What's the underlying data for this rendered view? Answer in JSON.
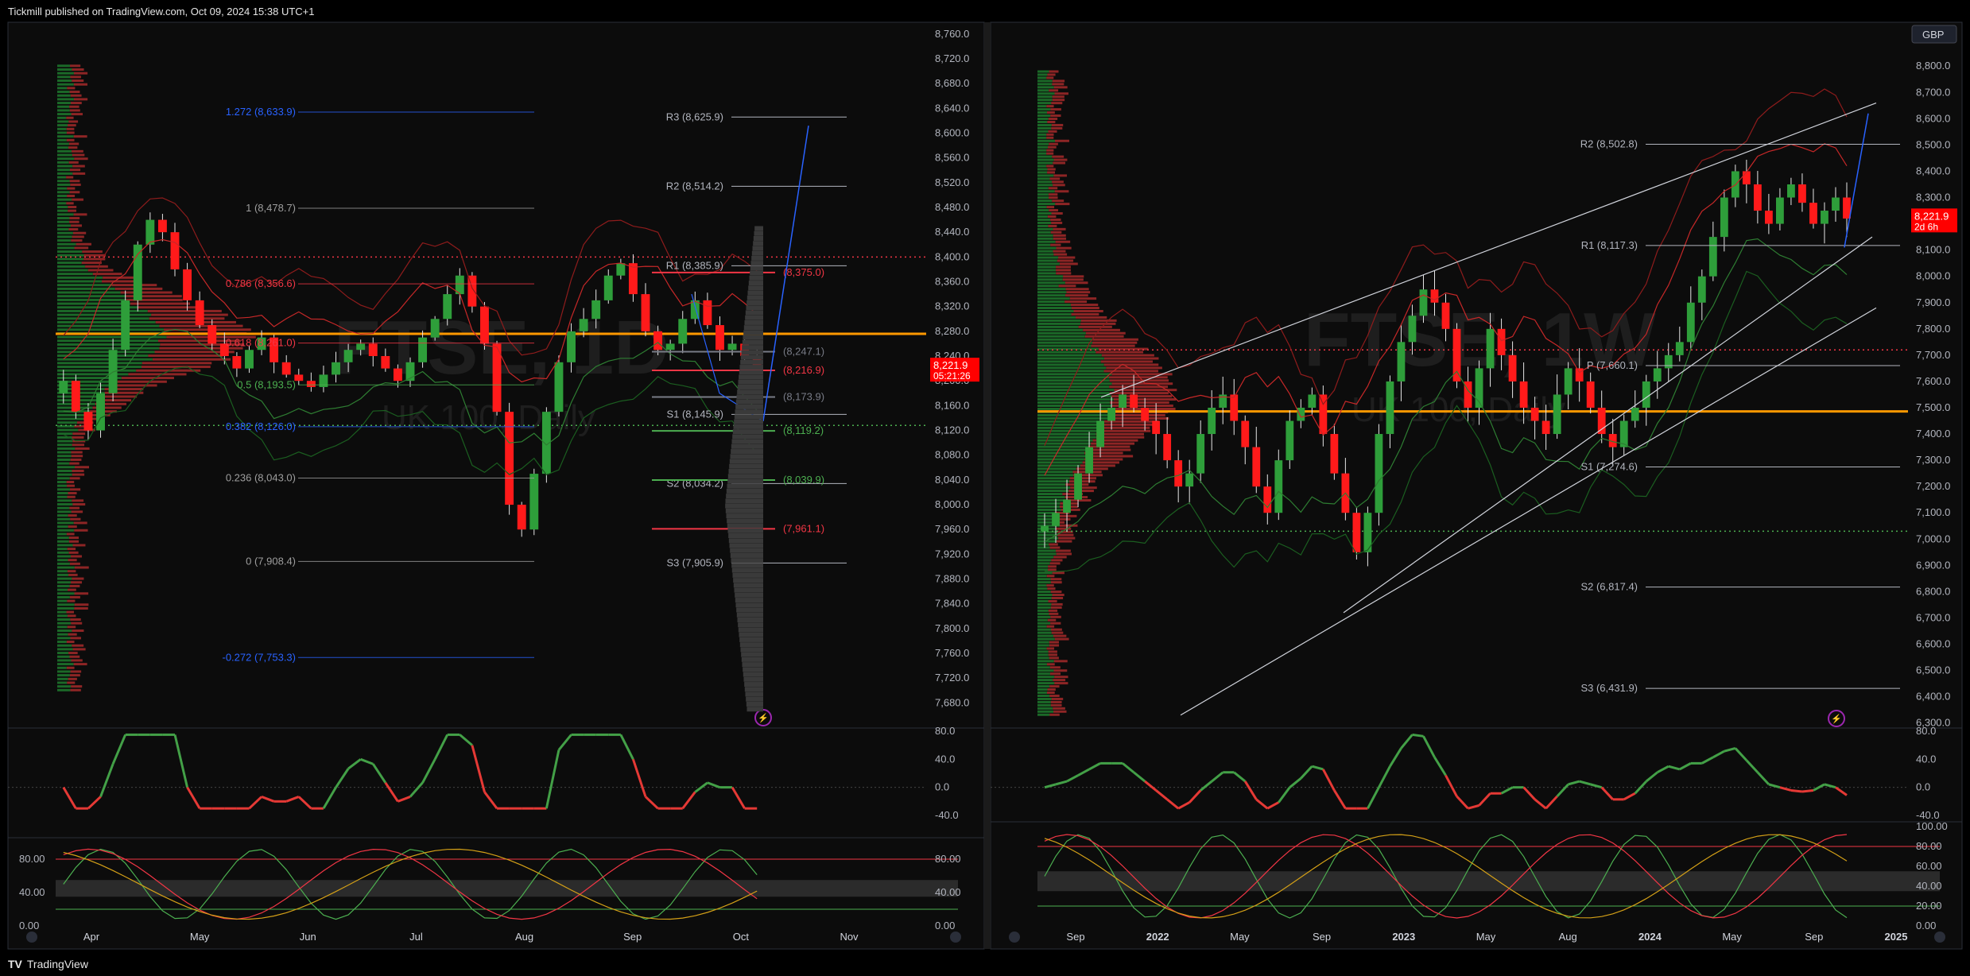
{
  "header": {
    "published": "Tickmill published on TradingView.com, Oct 09, 2024 15:38 UTC+1"
  },
  "footer": {
    "brand": "TradingView"
  },
  "currency_button": "GBP",
  "chart_data": [
    {
      "type": "candlestick",
      "watermark_symbol": "FTSE, 1D",
      "watermark_desc": "UK 100, Daily",
      "price_axis_ticks": [
        "8,760.0",
        "8,720.0",
        "8,680.0",
        "8,640.0",
        "8,600.0",
        "8,560.0",
        "8,520.0",
        "8,480.0",
        "8,440.0",
        "8,400.0",
        "8,360.0",
        "8,320.0",
        "8,280.0",
        "8,240.0",
        "8,200.0",
        "8,160.0",
        "8,120.0",
        "8,080.0",
        "8,040.0",
        "8,000.0",
        "7,960.0",
        "7,920.0",
        "7,880.0",
        "7,840.0",
        "7,800.0",
        "7,760.0",
        "7,720.0",
        "7,680.0"
      ],
      "ylim": [
        7660,
        8770
      ],
      "time_axis": [
        "Apr",
        "May",
        "Jun",
        "Jul",
        "Aug",
        "Sep",
        "Oct",
        "Nov"
      ],
      "last_price": "8,221.9",
      "countdown": "05:21:26",
      "fib_levels": [
        {
          "label": "1.272 (8,633.9)",
          "value": 8633.9,
          "color": "#2962ff"
        },
        {
          "label": "1 (8,478.7)",
          "value": 8478.7,
          "color": "#9e9e9e"
        },
        {
          "label": "0.786 (8,356.6)",
          "value": 8356.6,
          "color": "#f23645"
        },
        {
          "label": "0.618 (8,261.0)",
          "value": 8261.0,
          "color": "#f23645"
        },
        {
          "label": "0.5 (8,193.5)",
          "value": 8193.5,
          "color": "#4caf50"
        },
        {
          "label": "0.382 (8,126.0)",
          "value": 8126.0,
          "color": "#2962ff"
        },
        {
          "label": "0.236 (8,043.0)",
          "value": 8043.0,
          "color": "#9e9e9e"
        },
        {
          "label": "0 (7,908.4)",
          "value": 7908.4,
          "color": "#9e9e9e"
        },
        {
          "label": "-0.272 (7,753.3)",
          "value": 7753.3,
          "color": "#2962ff"
        }
      ],
      "pivots": [
        {
          "label": "R3 (8,625.9)",
          "value": 8625.9
        },
        {
          "label": "R2 (8,514.2)",
          "value": 8514.2
        },
        {
          "label": "R1 (8,385.9)",
          "value": 8385.9
        },
        {
          "label": "S1 (8,145.9)",
          "value": 8145.9
        },
        {
          "label": "S2 (8,034.2)",
          "value": 8034.2
        },
        {
          "label": "S3 (7,905.9)",
          "value": 7905.9
        }
      ],
      "price_labels": [
        {
          "label": "(8,375.0)",
          "value": 8375.0,
          "color": "#f23645"
        },
        {
          "label": "(8,247.1)",
          "value": 8247.1,
          "color": "#787b86"
        },
        {
          "label": "(8,216.9)",
          "value": 8216.9,
          "color": "#f23645"
        },
        {
          "label": "(8,173.9)",
          "value": 8173.9,
          "color": "#787b86"
        },
        {
          "label": "(8,119.2)",
          "value": 8119.2,
          "color": "#4caf50"
        },
        {
          "label": "(8,039.9)",
          "value": 8039.9,
          "color": "#4caf50"
        },
        {
          "label": "(7,961.1)",
          "value": 7961.1,
          "color": "#f23645"
        }
      ],
      "rsi_axis": [
        "80.0",
        "40.0",
        "0.0",
        "-40.0"
      ],
      "stoch_axis_left": [
        "80.00",
        "40.00",
        "0.00"
      ],
      "stoch_axis_right": [
        "80.00",
        "40.00",
        "0.00"
      ],
      "series": [
        8200,
        8150,
        8120,
        8180,
        8250,
        8330,
        8420,
        8460,
        8440,
        8380,
        8330,
        8290,
        8260,
        8240,
        8220,
        8250,
        8270,
        8230,
        8210,
        8200,
        8190,
        8210,
        8230,
        8250,
        8260,
        8240,
        8220,
        8200,
        8230,
        8270,
        8300,
        8340,
        8370,
        8320,
        8260,
        8150,
        8000,
        7960,
        8050,
        8150,
        8230,
        8280,
        8300,
        8330,
        8370,
        8390,
        8340,
        8280,
        8250,
        8260,
        8300,
        8330,
        8290,
        8250,
        8260,
        8240,
        8220
      ]
    },
    {
      "type": "candlestick",
      "watermark_symbol": "FTSE, 1W",
      "watermark_desc": "UK 100, Daily",
      "price_axis_ticks": [
        "8,800.0",
        "8,700.0",
        "8,600.0",
        "8,500.0",
        "8,400.0",
        "8,300.0",
        "8,200.0",
        "8,100.0",
        "8,000.0",
        "7,900.0",
        "7,800.0",
        "7,700.0",
        "7,600.0",
        "7,500.0",
        "7,400.0",
        "7,300.0",
        "7,200.0",
        "7,100.0",
        "7,000.0",
        "6,900.0",
        "6,800.0",
        "6,700.0",
        "6,600.0",
        "6,500.0",
        "6,400.0",
        "6,300.0"
      ],
      "ylim": [
        6290,
        8840
      ],
      "time_axis": [
        "Sep",
        "2022",
        "May",
        "Sep",
        "2023",
        "May",
        "Aug",
        "2024",
        "May",
        "Sep",
        "2025"
      ],
      "last_price": "8,221.9",
      "countdown": "2d 6h",
      "pivots": [
        {
          "label": "R2 (8,502.8)",
          "value": 8502.8
        },
        {
          "label": "R1 (8,117.3)",
          "value": 8117.3
        },
        {
          "label": "P (7,660.1)",
          "value": 7660.1
        },
        {
          "label": "S1 (7,274.6)",
          "value": 7274.6
        },
        {
          "label": "S2 (6,817.4)",
          "value": 6817.4
        },
        {
          "label": "S3 (6,431.9)",
          "value": 6431.9
        }
      ],
      "rsi_axis": [
        "80.0",
        "40.0",
        "0.0",
        "-40.0"
      ],
      "stoch_axis": [
        "100.00",
        "80.00",
        "60.00",
        "40.00",
        "20.00",
        "0.00"
      ],
      "series": [
        7050,
        7100,
        7150,
        7250,
        7350,
        7450,
        7500,
        7550,
        7500,
        7450,
        7400,
        7300,
        7200,
        7250,
        7400,
        7500,
        7550,
        7450,
        7350,
        7200,
        7100,
        7300,
        7450,
        7500,
        7550,
        7400,
        7250,
        7100,
        6950,
        7100,
        7400,
        7600,
        7750,
        7850,
        7950,
        7900,
        7800,
        7600,
        7500,
        7650,
        7800,
        7700,
        7600,
        7500,
        7450,
        7400,
        7550,
        7650,
        7600,
        7500,
        7400,
        7350,
        7450,
        7500,
        7600,
        7650,
        7700,
        7750,
        7900,
        8000,
        8150,
        8300,
        8400,
        8350,
        8250,
        8200,
        8300,
        8350,
        8280,
        8200,
        8250,
        8300,
        8220
      ]
    }
  ]
}
